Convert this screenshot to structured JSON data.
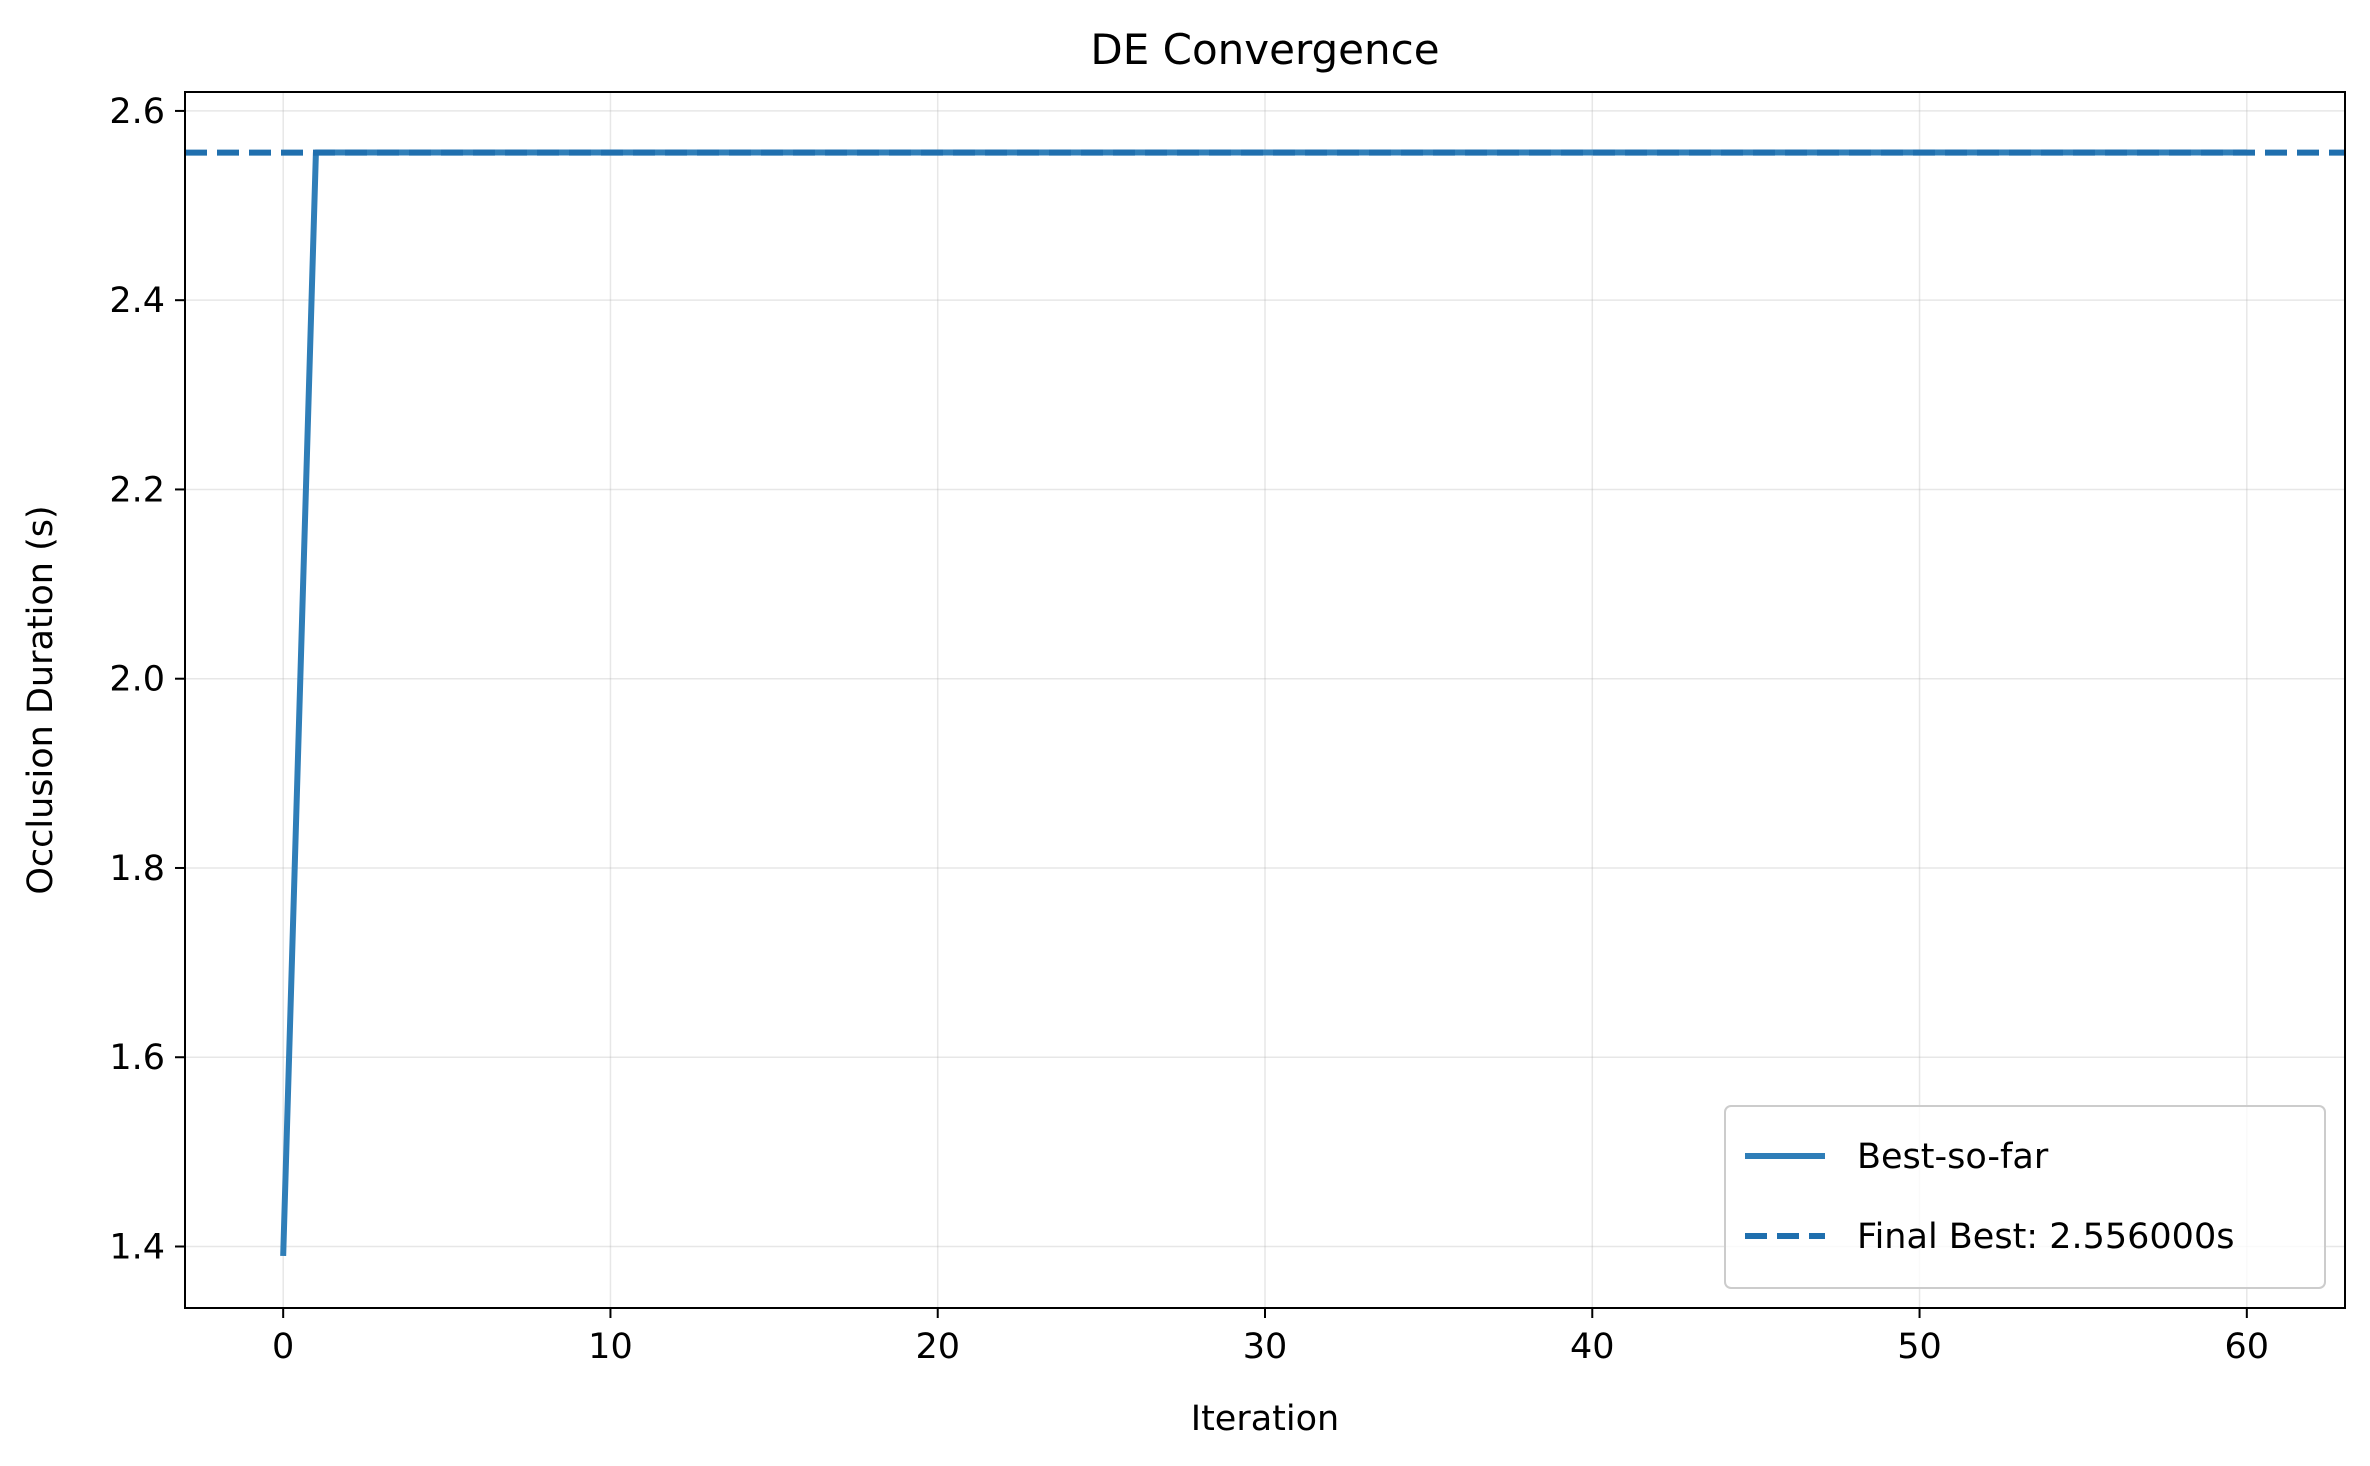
{
  "chart_data": {
    "type": "line",
    "title": "DE Convergence",
    "xlabel": "Iteration",
    "ylabel": "Occlusion Duration (s)",
    "xlim": [
      -3,
      63
    ],
    "ylim": [
      1.335,
      2.62
    ],
    "xticks": [
      0,
      10,
      20,
      30,
      40,
      50,
      60
    ],
    "xtick_labels": [
      "0",
      "10",
      "20",
      "30",
      "40",
      "50",
      "60"
    ],
    "yticks": [
      1.4,
      1.6,
      1.8,
      2.0,
      2.2,
      2.4,
      2.6
    ],
    "ytick_labels": [
      "1.4",
      "1.6",
      "1.8",
      "2.0",
      "2.2",
      "2.4",
      "2.6"
    ],
    "grid": true,
    "legend_position": "lower-right",
    "series": [
      {
        "name": "Best-so-far",
        "style": "solid",
        "color": "#2f7eb8",
        "x": [
          0,
          1,
          2,
          3,
          4,
          5,
          6,
          7,
          8,
          9,
          10,
          11,
          12,
          13,
          14,
          15,
          16,
          17,
          18,
          19,
          20,
          21,
          22,
          23,
          24,
          25,
          26,
          27,
          28,
          29,
          30,
          31,
          32,
          33,
          34,
          35,
          36,
          37,
          38,
          39,
          40,
          41,
          42,
          43,
          44,
          45,
          46,
          47,
          48,
          49,
          50,
          51,
          52,
          53,
          54,
          55,
          56,
          57,
          58,
          59,
          60
        ],
        "y": [
          1.39,
          2.556,
          2.556,
          2.556,
          2.556,
          2.556,
          2.556,
          2.556,
          2.556,
          2.556,
          2.556,
          2.556,
          2.556,
          2.556,
          2.556,
          2.556,
          2.556,
          2.556,
          2.556,
          2.556,
          2.556,
          2.556,
          2.556,
          2.556,
          2.556,
          2.556,
          2.556,
          2.556,
          2.556,
          2.556,
          2.556,
          2.556,
          2.556,
          2.556,
          2.556,
          2.556,
          2.556,
          2.556,
          2.556,
          2.556,
          2.556,
          2.556,
          2.556,
          2.556,
          2.556,
          2.556,
          2.556,
          2.556,
          2.556,
          2.556,
          2.556,
          2.556,
          2.556,
          2.556,
          2.556,
          2.556,
          2.556,
          2.556,
          2.556,
          2.556,
          2.556
        ]
      },
      {
        "name": "Final Best: 2.556000s",
        "style": "dashed",
        "color": "#1f6fae",
        "hline": 2.556
      }
    ]
  }
}
